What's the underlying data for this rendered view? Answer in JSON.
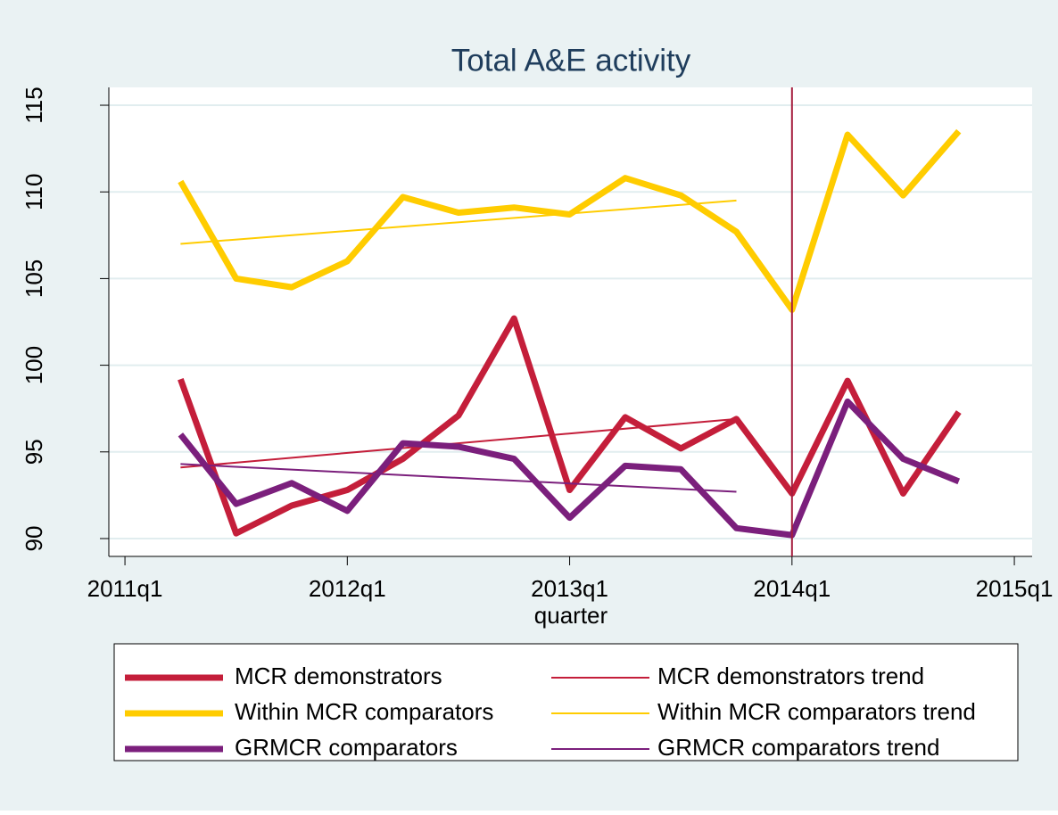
{
  "chart_data": {
    "type": "line",
    "title": "Total A&E activity",
    "x_label": "quarter",
    "x": [
      205,
      206,
      207,
      208,
      209,
      210,
      211,
      212,
      213,
      214,
      215,
      216,
      217,
      218,
      219
    ],
    "series": [
      {
        "name": "MCR demonstrators",
        "color": "#c41e3a",
        "values": [
          99.2,
          90.3,
          91.9,
          92.8,
          94.6,
          97.1,
          102.7,
          92.8,
          97.0,
          95.2,
          96.9,
          92.6,
          99.1,
          92.6,
          97.3
        ]
      },
      {
        "name": "MCR demonstrators trend",
        "color": "#c41e3a",
        "x": [
          205,
          215
        ],
        "values": [
          94.1,
          96.9
        ]
      },
      {
        "name": "Within MCR comparators",
        "color": "#ffcc00",
        "values": [
          110.6,
          105.0,
          104.5,
          106.0,
          109.7,
          108.8,
          109.1,
          108.7,
          110.8,
          109.8,
          107.7,
          103.2,
          113.3,
          109.8,
          113.5
        ]
      },
      {
        "name": "Within MCR comparators trend",
        "color": "#ffcc00",
        "x": [
          205,
          215
        ],
        "values": [
          107.0,
          109.5
        ]
      },
      {
        "name": "GRMCR comparators",
        "color": "#7b1f7c",
        "values": [
          96.0,
          92.0,
          93.2,
          91.6,
          95.5,
          95.3,
          94.6,
          91.2,
          94.2,
          94.0,
          90.6,
          90.2,
          97.9,
          94.6,
          93.3
        ]
      },
      {
        "name": "GRMCR comparators trend",
        "color": "#7b1f7c",
        "x": [
          205,
          215
        ],
        "values": [
          94.3,
          92.7
        ]
      }
    ],
    "xlim": [
      203.71,
      220.32
    ],
    "xticks": [
      {
        "value": 204,
        "label": "2011q1"
      },
      {
        "value": 208,
        "label": "2012q1"
      },
      {
        "value": 212,
        "label": "2013q1"
      },
      {
        "value": 216,
        "label": "2014q1"
      },
      {
        "value": 220,
        "label": "2015q1"
      }
    ],
    "ylim": [
      88.97,
      116.03
    ],
    "yticks": [
      90,
      95,
      100,
      105,
      110,
      115
    ],
    "xline": 216,
    "xline_color": "#a51d3d",
    "grid": true,
    "legend": "bottom"
  }
}
